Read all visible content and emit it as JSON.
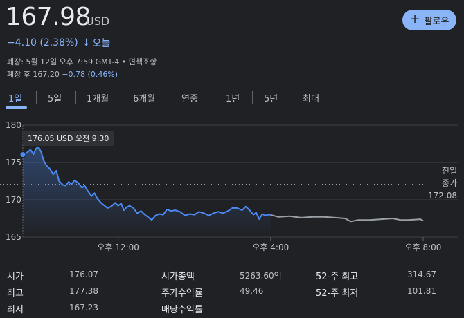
{
  "quote": {
    "price": "167.98",
    "currency": "USD",
    "change": "−4.10 (2.38%)",
    "change_arrow": "↓",
    "change_period": "오늘",
    "close_info": "폐장: 5월 12일 오후 7:59 GMT-4 • 면책조항",
    "after_hours_label": "폐장 후 167.20",
    "after_hours_change": "−0.78 (0.46%)"
  },
  "follow_button": {
    "icon": "plus-icon",
    "label": "팔로우"
  },
  "tabs": [
    "1일",
    "5일",
    "1개월",
    "6개월",
    "연중",
    "1년",
    "5년",
    "최대"
  ],
  "active_tab": "1일",
  "tooltip": "176.05 USD  오전 9:30",
  "prev_close": {
    "label1": "전일",
    "label2": "종가",
    "value": "172.08"
  },
  "colors": {
    "accent": "#8ab4f8",
    "line_main": "#4c8bf5",
    "line_after": "#9aa0a6",
    "background": "#202124"
  },
  "chart_data": {
    "type": "line",
    "y_ticks": [
      "180",
      "175",
      "170",
      "165"
    ],
    "x_ticks": [
      "오후 12:00",
      "오후 4:00",
      "오후 8:00"
    ],
    "ylim": [
      165,
      180
    ],
    "xlim": [
      9.5,
      20
    ],
    "reference_line": 172.08,
    "series": [
      {
        "values": [
          [
            9.5,
            176.05
          ],
          [
            9.6,
            176.3
          ],
          [
            9.7,
            176.7
          ],
          [
            9.78,
            176.1
          ],
          [
            9.85,
            176.9
          ],
          [
            9.92,
            177.0
          ],
          [
            9.98,
            176.4
          ],
          [
            10.05,
            175.2
          ],
          [
            10.12,
            174.6
          ],
          [
            10.2,
            174.2
          ],
          [
            10.3,
            173.4
          ],
          [
            10.38,
            173.9
          ],
          [
            10.45,
            172.5
          ],
          [
            10.55,
            172.0
          ],
          [
            10.62,
            171.9
          ],
          [
            10.7,
            172.4
          ],
          [
            10.78,
            172.1
          ],
          [
            10.85,
            172.6
          ],
          [
            10.95,
            172.3
          ],
          [
            11.05,
            171.6
          ],
          [
            11.12,
            171.9
          ],
          [
            11.2,
            171.2
          ],
          [
            11.3,
            170.5
          ],
          [
            11.38,
            170.9
          ],
          [
            11.45,
            170.2
          ],
          [
            11.55,
            169.6
          ],
          [
            11.62,
            169.3
          ],
          [
            11.72,
            168.9
          ],
          [
            11.82,
            169.1
          ],
          [
            11.92,
            169.6
          ],
          [
            12.0,
            169.2
          ],
          [
            12.08,
            169.5
          ],
          [
            12.15,
            168.6
          ],
          [
            12.22,
            169.0
          ],
          [
            12.3,
            169.2
          ],
          [
            12.4,
            168.9
          ],
          [
            12.5,
            168.2
          ],
          [
            12.6,
            168.5
          ],
          [
            12.7,
            168.0
          ],
          [
            12.78,
            167.7
          ],
          [
            12.88,
            167.3
          ],
          [
            12.98,
            167.9
          ],
          [
            13.08,
            168.1
          ],
          [
            13.18,
            168.0
          ],
          [
            13.28,
            168.7
          ],
          [
            13.38,
            168.5
          ],
          [
            13.5,
            168.6
          ],
          [
            13.62,
            168.4
          ],
          [
            13.75,
            167.9
          ],
          [
            13.88,
            168.1
          ],
          [
            14.0,
            168.0
          ],
          [
            14.12,
            168.4
          ],
          [
            14.25,
            168.2
          ],
          [
            14.38,
            167.9
          ],
          [
            14.5,
            168.2
          ],
          [
            14.62,
            168.4
          ],
          [
            14.75,
            168.2
          ],
          [
            14.88,
            168.5
          ],
          [
            15.0,
            168.9
          ],
          [
            15.12,
            168.9
          ],
          [
            15.25,
            168.6
          ],
          [
            15.35,
            169.1
          ],
          [
            15.45,
            168.6
          ],
          [
            15.55,
            168.0
          ],
          [
            15.62,
            168.3
          ],
          [
            15.7,
            167.4
          ],
          [
            15.78,
            168.1
          ],
          [
            15.85,
            167.9
          ],
          [
            15.92,
            167.98
          ],
          [
            16.0,
            167.98
          ]
        ]
      },
      {
        "values": [
          [
            16.0,
            167.98
          ],
          [
            16.2,
            167.7
          ],
          [
            16.5,
            167.8
          ],
          [
            16.8,
            167.6
          ],
          [
            17.1,
            167.7
          ],
          [
            17.4,
            167.7
          ],
          [
            17.7,
            167.6
          ],
          [
            17.95,
            167.5
          ],
          [
            18.1,
            167.1
          ],
          [
            18.3,
            167.3
          ],
          [
            18.6,
            167.3
          ],
          [
            18.9,
            167.4
          ],
          [
            19.2,
            167.5
          ],
          [
            19.4,
            167.3
          ],
          [
            19.6,
            167.3
          ],
          [
            19.8,
            167.35
          ],
          [
            19.93,
            167.4
          ],
          [
            20.0,
            167.2
          ]
        ]
      }
    ]
  },
  "stats": {
    "col1": [
      {
        "label": "시가",
        "value": "176.07"
      },
      {
        "label": "최고",
        "value": "177.38"
      },
      {
        "label": "최저",
        "value": "167.23"
      }
    ],
    "col2": [
      {
        "label": "시가총액",
        "value": "5263.60억"
      },
      {
        "label": "주가수익률",
        "value": "49.46"
      },
      {
        "label": "배당수익률",
        "value": "-"
      }
    ],
    "col3": [
      {
        "label": "52-주 최고",
        "value": "314.67"
      },
      {
        "label": "52-주 최저",
        "value": "101.81"
      }
    ]
  }
}
